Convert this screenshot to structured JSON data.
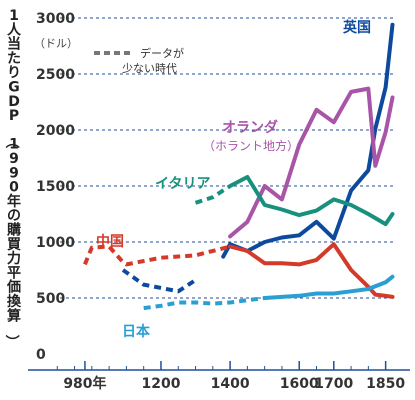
{
  "chart_data": {
    "type": "line",
    "title": "",
    "ylabel": "1人当たりGDP（1990年の購買力平価換算）",
    "yunit": "（ドル）",
    "ylim": [
      0,
      3000
    ],
    "yticks": [
      0,
      500,
      1000,
      1500,
      2000,
      2500,
      3000
    ],
    "xlim": [
      850,
      1880
    ],
    "xticks": [
      {
        "value": 980,
        "label": "980年"
      },
      {
        "value": 1200,
        "label": "1200"
      },
      {
        "value": 1400,
        "label": "1400"
      },
      {
        "value": 1600,
        "label": "1600"
      },
      {
        "value": 1700,
        "label": "1700"
      },
      {
        "value": 1850,
        "label": "1850"
      }
    ],
    "xminor": [
      900,
      950,
      1000,
      1050,
      1100,
      1150,
      1250,
      1300,
      1350,
      1450,
      1500,
      1550,
      1650,
      1750,
      1800
    ],
    "grid": true,
    "legend": {
      "label": "データが\n少ない時代",
      "style": "dashed"
    },
    "series": [
      {
        "name": "英国",
        "color": "#0d4a9e",
        "label_color": "#0d4a9e",
        "dashed": [
          [
            1090,
            750
          ],
          [
            1150,
            620
          ],
          [
            1250,
            560
          ],
          [
            1300,
            660
          ]
        ],
        "solid": [
          [
            1380,
            870
          ],
          [
            1400,
            980
          ],
          [
            1450,
            920
          ],
          [
            1500,
            1000
          ],
          [
            1550,
            1040
          ],
          [
            1600,
            1060
          ],
          [
            1650,
            1180
          ],
          [
            1700,
            1030
          ],
          [
            1750,
            1460
          ],
          [
            1800,
            1640
          ],
          [
            1820,
            2010
          ],
          [
            1850,
            2380
          ],
          [
            1870,
            2940
          ]
        ]
      },
      {
        "name": "オランダ",
        "subname": "（ホラント地方）",
        "color": "#a855a8",
        "label_color": "#a855a8",
        "dashed": [],
        "solid": [
          [
            1400,
            1050
          ],
          [
            1450,
            1180
          ],
          [
            1500,
            1500
          ],
          [
            1550,
            1380
          ],
          [
            1600,
            1870
          ],
          [
            1650,
            2180
          ],
          [
            1700,
            2070
          ],
          [
            1750,
            2340
          ],
          [
            1800,
            2370
          ],
          [
            1820,
            1680
          ],
          [
            1850,
            1980
          ],
          [
            1870,
            2290
          ]
        ]
      },
      {
        "name": "イタリア",
        "color": "#17917e",
        "label_color": "#17917e",
        "dashed": [
          [
            1300,
            1350
          ],
          [
            1350,
            1400
          ],
          [
            1400,
            1500
          ]
        ],
        "solid": [
          [
            1400,
            1500
          ],
          [
            1450,
            1580
          ],
          [
            1500,
            1330
          ],
          [
            1550,
            1290
          ],
          [
            1600,
            1240
          ],
          [
            1650,
            1280
          ],
          [
            1700,
            1380
          ],
          [
            1750,
            1330
          ],
          [
            1800,
            1250
          ],
          [
            1850,
            1160
          ],
          [
            1870,
            1250
          ]
        ]
      },
      {
        "name": "中国",
        "color": "#d33a2a",
        "label_color": "#d33a2a",
        "dashed": [
          [
            980,
            800
          ],
          [
            1000,
            950
          ],
          [
            1050,
            960
          ],
          [
            1090,
            820
          ],
          [
            1100,
            800
          ],
          [
            1200,
            860
          ],
          [
            1300,
            880
          ],
          [
            1400,
            960
          ]
        ],
        "solid": [
          [
            1400,
            960
          ],
          [
            1450,
            920
          ],
          [
            1500,
            810
          ],
          [
            1550,
            810
          ],
          [
            1600,
            800
          ],
          [
            1650,
            840
          ],
          [
            1700,
            980
          ],
          [
            1750,
            750
          ],
          [
            1800,
            600
          ],
          [
            1820,
            530
          ],
          [
            1850,
            520
          ],
          [
            1870,
            510
          ]
        ]
      },
      {
        "name": "日本",
        "color": "#2a9fd3",
        "label_color": "#2a9fd3",
        "dashed": [
          [
            1150,
            410
          ],
          [
            1200,
            430
          ],
          [
            1250,
            460
          ],
          [
            1300,
            460
          ],
          [
            1350,
            450
          ],
          [
            1400,
            460
          ],
          [
            1450,
            480
          ],
          [
            1500,
            500
          ]
        ],
        "solid": [
          [
            1500,
            500
          ],
          [
            1550,
            510
          ],
          [
            1600,
            520
          ],
          [
            1650,
            540
          ],
          [
            1700,
            540
          ],
          [
            1750,
            560
          ],
          [
            1800,
            580
          ],
          [
            1850,
            640
          ],
          [
            1870,
            690
          ]
        ]
      }
    ]
  }
}
